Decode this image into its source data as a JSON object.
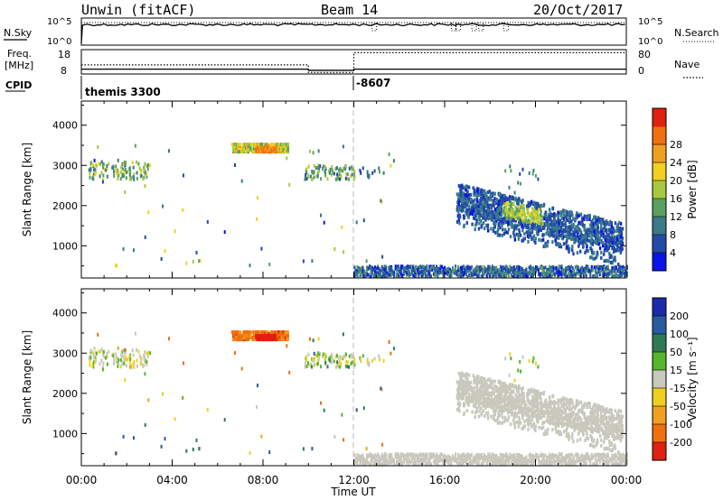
{
  "header": {
    "title": "Unwin (fitACF)",
    "beam": "Beam 14",
    "date": "20/Oct/2017"
  },
  "aux_panels": {
    "nsky_label": "N.Sky",
    "nsky_ticks": [
      "10^5",
      "10^0"
    ],
    "nsearch_label": "N.Search",
    "nsearch_ticks": [
      "10^5",
      "10^0"
    ],
    "freq_label": "Freq.",
    "freq_unit": "[MHz]",
    "freq_ticks": [
      "18",
      "8"
    ],
    "nave_label": "Nave",
    "nave_ticks": [
      "80",
      "0"
    ],
    "cpid_label": "CPID",
    "cpid_segments": [
      {
        "label": "themis 3300",
        "start_hour": 0
      },
      {
        "label": "-8607",
        "start_hour": 12
      }
    ],
    "freq_steps": [
      {
        "start_hour": 0,
        "end_hour": 10,
        "mhz": 10
      },
      {
        "start_hour": 10,
        "end_hour": 12,
        "mhz": 9.5
      },
      {
        "start_hour": 12,
        "end_hour": 24,
        "mhz": 10
      }
    ],
    "nave_steps": [
      {
        "start_hour": 0,
        "end_hour": 10,
        "value": 30
      },
      {
        "start_hour": 10,
        "end_hour": 12,
        "value": 5
      },
      {
        "start_hour": 12,
        "end_hour": 24,
        "value": 70
      }
    ]
  },
  "colorbars": {
    "power": {
      "label": "Power [dB]",
      "ticks": [
        "4",
        "8",
        "12",
        "16",
        "20",
        "24",
        "28"
      ],
      "colors": [
        "#0a14e6",
        "#234aa6",
        "#3a7a8a",
        "#5aa060",
        "#a8c840",
        "#f0d020",
        "#f0a020",
        "#f07010",
        "#e02010"
      ]
    },
    "velocity": {
      "label": "Velocity [m s⁻¹]",
      "ticks": [
        "200",
        "100",
        "50",
        "15",
        "-15",
        "-50",
        "-100",
        "-200"
      ],
      "colors": [
        "#1a2aa8",
        "#2a5aa0",
        "#2f7a55",
        "#55b52c",
        "#c8c8bd",
        "#eed020",
        "#f0a020",
        "#f07010",
        "#e02010"
      ]
    }
  },
  "chart_data": [
    {
      "type": "heatmap",
      "quantity": "Power [dB]",
      "xlabel": "Time UT",
      "ylabel": "Slant Range [km]",
      "xlim": [
        0,
        24
      ],
      "ylim": [
        200,
        4600
      ],
      "x_tick_labels": [
        "00:00",
        "04:00",
        "08:00",
        "12:00",
        "16:00",
        "20:00",
        "00:00"
      ],
      "y_tick_labels": [
        "1000",
        "2000",
        "3000",
        "4000"
      ],
      "grid": false,
      "features": [
        {
          "desc": "strong echo patch",
          "t_start": 6.6,
          "t_end": 9.1,
          "range_min": 3350,
          "range_max": 3550,
          "peak_value_db": 28
        },
        {
          "desc": "sparse echoes",
          "t_start": 0.3,
          "t_end": 3.0,
          "range_min": 2650,
          "range_max": 3100,
          "value_db": 14
        },
        {
          "desc": "near-range ground scatter band",
          "t_start": 12.0,
          "t_end": 24.0,
          "range_min": 220,
          "range_max": 450,
          "value_db": 6
        },
        {
          "desc": "descending echo band",
          "t_start": 16.5,
          "t_end": 23.8,
          "range_start": 2200,
          "range_end": 1200,
          "value_db": 16
        }
      ]
    },
    {
      "type": "heatmap",
      "quantity": "Velocity [m s^-1]",
      "xlabel": "Time UT",
      "ylabel": "Slant Range [km]",
      "xlim": [
        0,
        24
      ],
      "ylim": [
        200,
        4600
      ],
      "x_tick_labels": [
        "00:00",
        "04:00",
        "08:00",
        "12:00",
        "16:00",
        "20:00",
        "00:00"
      ],
      "y_tick_labels": [
        "1000",
        "2000",
        "3000",
        "4000"
      ],
      "grid": false,
      "features": [
        {
          "desc": "strong echo patch",
          "t_start": 6.6,
          "t_end": 9.1,
          "range_min": 3350,
          "range_max": 3550,
          "velocity": -200
        },
        {
          "desc": "sparse echoes",
          "t_start": 0.3,
          "t_end": 3.0,
          "range_min": 2650,
          "range_max": 3100,
          "velocity": -30
        },
        {
          "desc": "near-range ground scatter band",
          "t_start": 12.0,
          "t_end": 24.0,
          "range_min": 220,
          "range_max": 450,
          "velocity": 0
        },
        {
          "desc": "descending echo band (ground scatter)",
          "t_start": 16.5,
          "t_end": 23.8,
          "range_start": 2200,
          "range_end": 1200,
          "velocity": 0
        }
      ]
    }
  ]
}
